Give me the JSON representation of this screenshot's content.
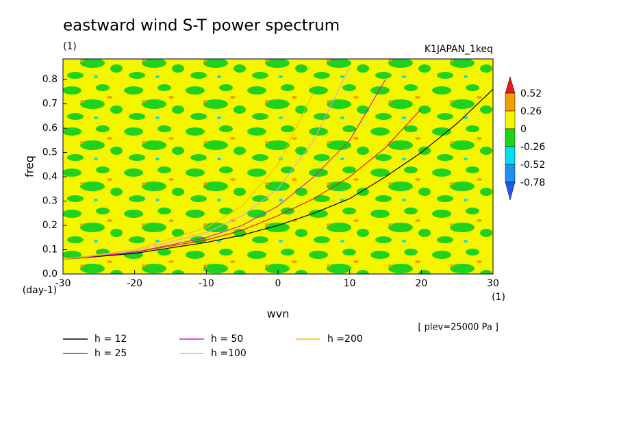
{
  "chart_data": {
    "type": "line",
    "title": "eastward wind S-T power spectrum",
    "subtitle": "(1)",
    "annotation": "K1JAPAN_1keq",
    "ylabel": "freq",
    "yunit": "(day-1)",
    "xlabel": "wvn",
    "xunit": "(1)",
    "note": "[ plev=25000 Pa ]",
    "x": [
      -30,
      -20,
      -10,
      -5,
      0,
      5,
      10,
      15,
      20,
      25,
      30
    ],
    "xlim": [
      -30,
      30
    ],
    "xticks": [
      -30,
      -20,
      -10,
      0,
      10,
      20,
      30
    ],
    "ylim": [
      0,
      0.885
    ],
    "yticks": [
      {
        "value": 0,
        "label": "0.0"
      },
      0.1,
      0.2,
      0.3,
      0.4,
      0.5,
      0.6,
      0.7,
      0.8
    ],
    "series": [
      {
        "name": "h = 12",
        "color": "#000000",
        "values": [
          0.06,
          0.085,
          0.13,
          0.16,
          0.2,
          0.25,
          0.31,
          0.4,
          0.5,
          0.62,
          0.76
        ]
      },
      {
        "name": "h = 25",
        "color": "#e81818",
        "values": [
          0.06,
          0.09,
          0.14,
          0.18,
          0.24,
          0.31,
          0.4,
          0.52,
          0.68,
          null,
          null
        ]
      },
      {
        "name": "h = 50",
        "color": "#d020b0",
        "values": [
          0.06,
          0.09,
          0.15,
          0.2,
          0.28,
          0.4,
          0.55,
          0.8,
          null,
          null,
          null
        ]
      },
      {
        "name": "h =100",
        "color": "#e0a0e0",
        "values": [
          0.06,
          0.095,
          0.17,
          0.24,
          0.35,
          0.55,
          0.85,
          null,
          null,
          null,
          null
        ]
      },
      {
        "name": "h =200",
        "color": "#f0c000",
        "values": [
          0.06,
          0.1,
          0.19,
          0.28,
          0.45,
          0.75,
          null,
          null,
          null,
          null,
          null
        ]
      }
    ],
    "colorbar": {
      "levels": [
        0.52,
        0.26,
        0,
        -0.26,
        -0.52,
        -0.78
      ],
      "colors": [
        "#e81818",
        "#f0a000",
        "#f5f500",
        "#1ed21e",
        "#00e0f0",
        "#1e90f0",
        "#1e5ae8"
      ]
    }
  }
}
